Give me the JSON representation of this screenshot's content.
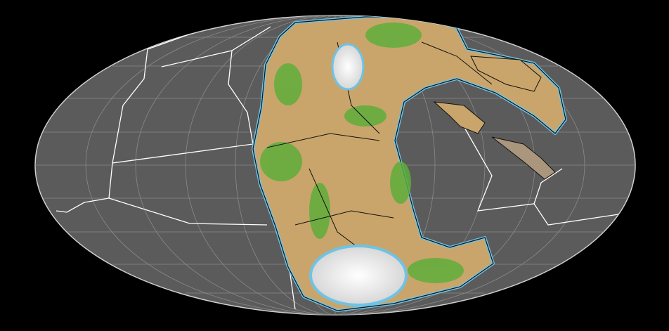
{
  "map": {
    "colors": {
      "background": "#000000",
      "ocean": "#5b5b5b",
      "graticule": "#8a8a8a",
      "plate_boundary": "#ffffff",
      "lowland": "#c9a56b",
      "vegetation": "#5fae3c",
      "shelf": "#6ec3e6",
      "ice": "#e8e8e8",
      "coastline": "#111111"
    },
    "features": [
      "pangaea-supercontinent",
      "tethys-ocean",
      "panthalassa-ocean",
      "antarctica-ice",
      "plate-boundaries",
      "graticule"
    ]
  }
}
